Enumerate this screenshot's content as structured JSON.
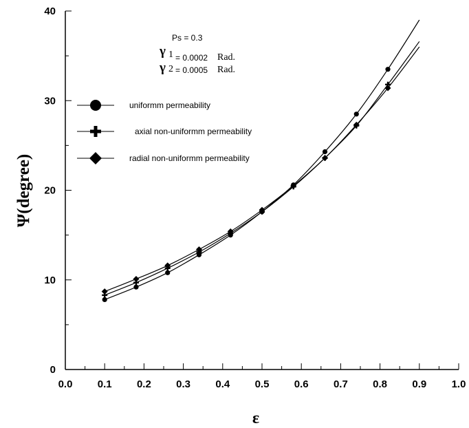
{
  "chart_data": {
    "type": "line",
    "title": "",
    "xlabel": "ε",
    "ylabel": "Ψ(degree)",
    "xlim": [
      0.0,
      1.0
    ],
    "ylim": [
      0,
      40
    ],
    "x_ticks": [
      "0.0",
      "0.1",
      "0.2",
      "0.3",
      "0.4",
      "0.5",
      "0.6",
      "0.7",
      "0.8",
      "0.9",
      "1.0"
    ],
    "y_ticks": [
      "0",
      "10",
      "20",
      "30",
      "40"
    ],
    "grid": false,
    "legend_position": "upper-left",
    "annotations": {
      "ps": "Ps = 0.3",
      "gamma1_symbol": "γ",
      "gamma1_sub": "1",
      "gamma1_value": "= 0.0002",
      "gamma1_unit": "Rad.",
      "gamma2_symbol": "γ",
      "gamma2_sub": "2",
      "gamma2_value": "= 0.0005",
      "gamma2_unit": "Rad."
    },
    "series": [
      {
        "name": "uniformm permeability",
        "marker": "circle",
        "x": [
          0.1,
          0.18,
          0.26,
          0.34,
          0.42,
          0.5,
          0.58,
          0.66,
          0.74,
          0.82
        ],
        "y": [
          7.8,
          9.2,
          10.8,
          12.8,
          15.0,
          17.6,
          20.6,
          24.3,
          28.5,
          33.5
        ],
        "curve_end": [
          0.9,
          39.0
        ]
      },
      {
        "name": "axial non-uniformm permeability",
        "marker": "plus",
        "x": [
          0.1,
          0.18,
          0.26,
          0.34,
          0.42,
          0.5,
          0.58,
          0.66,
          0.74,
          0.82
        ],
        "y": [
          8.3,
          9.7,
          11.3,
          13.1,
          15.2,
          17.6,
          20.4,
          23.6,
          27.2,
          31.8
        ],
        "curve_end": [
          0.9,
          36.6
        ]
      },
      {
        "name": "radial non-uniformm permeability",
        "marker": "diamond",
        "x": [
          0.1,
          0.18,
          0.26,
          0.34,
          0.42,
          0.5,
          0.58,
          0.66,
          0.74,
          0.82
        ],
        "y": [
          8.7,
          10.1,
          11.6,
          13.4,
          15.4,
          17.8,
          20.5,
          23.6,
          27.3,
          31.4
        ],
        "curve_end": [
          0.9,
          36.0
        ]
      }
    ]
  }
}
